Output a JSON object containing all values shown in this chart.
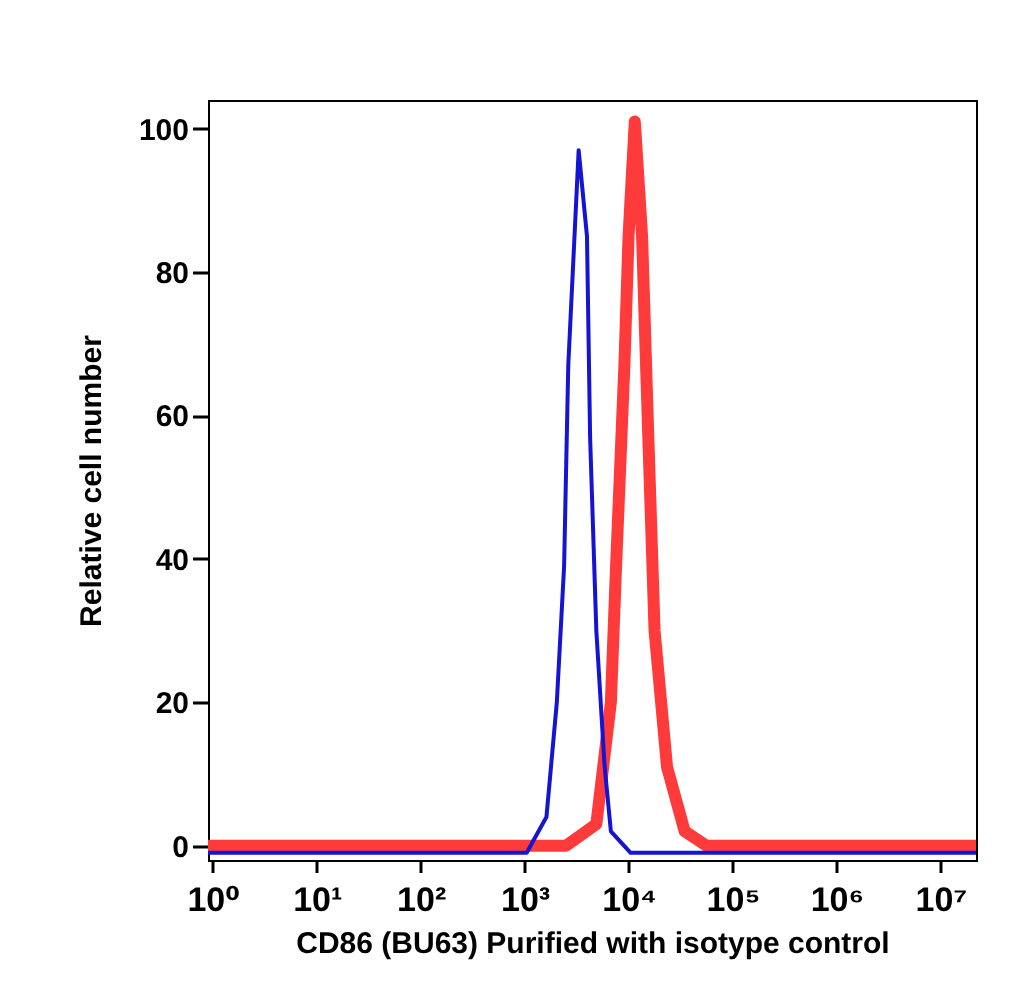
{
  "chart_data": {
    "type": "line",
    "xlabel": "CD86 (BU63) Purified with isotype control",
    "ylabel": "Relative cell number",
    "log": "x",
    "xlim": [
      0.9,
      22000000
    ],
    "ylim": [
      -2,
      104
    ],
    "xticks": [
      {
        "value": 1,
        "label": "10⁰"
      },
      {
        "value": 10,
        "label": "10¹"
      },
      {
        "value": 100,
        "label": "10²"
      },
      {
        "value": 1000,
        "label": "10³"
      },
      {
        "value": 10000,
        "label": "10⁴"
      },
      {
        "value": 100000,
        "label": "10⁵"
      },
      {
        "value": 1000000,
        "label": "10⁶"
      },
      {
        "value": 10000000,
        "label": "10⁷"
      }
    ],
    "yticks": [
      0,
      20,
      40,
      60,
      80,
      100
    ],
    "series": [
      {
        "color": "#ff3a3a",
        "x": [
          0.9,
          2512,
          4898,
          6761,
          7586,
          9120,
          10000,
          11482,
          13490,
          15488,
          17783,
          23442,
          34674,
          56234,
          22000000
        ],
        "values": [
          0,
          0,
          3,
          20,
          39,
          67,
          85,
          101,
          85,
          57,
          30,
          11,
          2,
          0,
          0
        ]
      },
      {
        "color": "#1414d2",
        "x": [
          0.9,
          1047,
          1622,
          2042,
          2399,
          2630,
          3020,
          3311,
          3981,
          4266,
          4898,
          5888,
          6761,
          10471,
          22000000
        ],
        "values": [
          -1,
          -1,
          4,
          20,
          39,
          67,
          85,
          97,
          85,
          57,
          30,
          11,
          2,
          -1,
          -1
        ]
      }
    ]
  }
}
